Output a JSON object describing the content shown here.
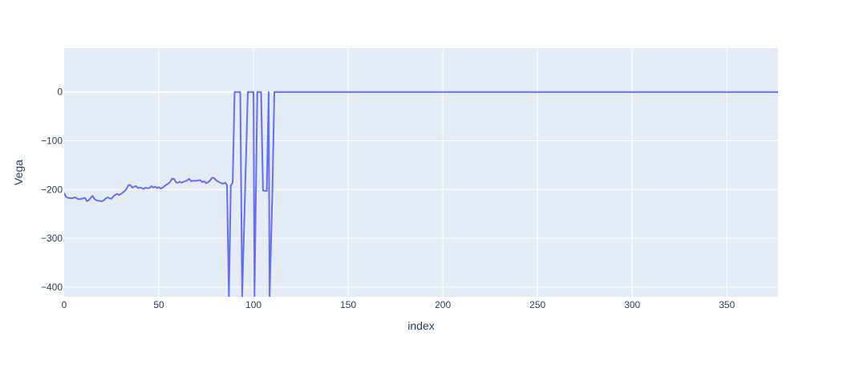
{
  "chart_data": {
    "type": "line",
    "title": "",
    "xlabel": "index",
    "ylabel": "Vega",
    "xlim": [
      0,
      377
    ],
    "ylim": [
      -420,
      90
    ],
    "grid": true,
    "xticks": [
      0,
      50,
      100,
      150,
      200,
      250,
      300,
      350
    ],
    "yticks": [
      0,
      -100,
      -200,
      -300,
      -400
    ],
    "x_tick_labels": [
      "0",
      "50",
      "100",
      "150",
      "200",
      "250",
      "300",
      "350"
    ],
    "y_tick_labels": [
      "0",
      "−100",
      "−200",
      "−300",
      "−400"
    ],
    "series": [
      {
        "color": "#636efa",
        "points": [
          [
            0,
            -207
          ],
          [
            1,
            -215
          ],
          [
            2,
            -217
          ],
          [
            4,
            -218
          ],
          [
            5,
            -217
          ],
          [
            6,
            -216
          ],
          [
            7,
            -219
          ],
          [
            8,
            -220
          ],
          [
            10,
            -218
          ],
          [
            11,
            -217
          ],
          [
            12,
            -224
          ],
          [
            13,
            -222
          ],
          [
            14,
            -217
          ],
          [
            15,
            -213
          ],
          [
            16,
            -219
          ],
          [
            17,
            -222
          ],
          [
            18,
            -223
          ],
          [
            20,
            -224
          ],
          [
            21,
            -222
          ],
          [
            22,
            -218
          ],
          [
            23,
            -216
          ],
          [
            24,
            -218
          ],
          [
            25,
            -219
          ],
          [
            26,
            -214
          ],
          [
            27,
            -211
          ],
          [
            28,
            -209
          ],
          [
            29,
            -211
          ],
          [
            30,
            -209
          ],
          [
            31,
            -206
          ],
          [
            32,
            -203
          ],
          [
            33,
            -198
          ],
          [
            34,
            -191
          ],
          [
            35,
            -191
          ],
          [
            36,
            -196
          ],
          [
            37,
            -194
          ],
          [
            38,
            -193
          ],
          [
            39,
            -197
          ],
          [
            40,
            -196
          ],
          [
            41,
            -197
          ],
          [
            42,
            -199
          ],
          [
            43,
            -196
          ],
          [
            44,
            -197
          ],
          [
            45,
            -197
          ],
          [
            46,
            -193
          ],
          [
            47,
            -196
          ],
          [
            48,
            -194
          ],
          [
            49,
            -197
          ],
          [
            50,
            -195
          ],
          [
            51,
            -198
          ],
          [
            52,
            -196
          ],
          [
            53,
            -193
          ],
          [
            54,
            -190
          ],
          [
            55,
            -188
          ],
          [
            56,
            -184
          ],
          [
            57,
            -178
          ],
          [
            58,
            -178
          ],
          [
            59,
            -185
          ],
          [
            60,
            -186
          ],
          [
            61,
            -184
          ],
          [
            62,
            -186
          ],
          [
            63,
            -184
          ],
          [
            64,
            -183
          ],
          [
            65,
            -181
          ],
          [
            66,
            -178
          ],
          [
            67,
            -183
          ],
          [
            68,
            -182
          ],
          [
            70,
            -182
          ],
          [
            71,
            -181
          ],
          [
            72,
            -181
          ],
          [
            73,
            -185
          ],
          [
            74,
            -183
          ],
          [
            75,
            -187
          ],
          [
            76,
            -185
          ],
          [
            77,
            -182
          ],
          [
            78,
            -176
          ],
          [
            79,
            -176
          ],
          [
            80,
            -180
          ],
          [
            81,
            -183
          ],
          [
            82,
            -185
          ],
          [
            83,
            -187
          ],
          [
            84,
            -188
          ],
          [
            85,
            -186
          ],
          [
            86,
            -191
          ],
          [
            87,
            -420
          ],
          [
            88,
            -192
          ],
          [
            89,
            -186
          ],
          [
            90,
            0
          ],
          [
            93,
            0
          ],
          [
            94,
            -420
          ],
          [
            97,
            0
          ],
          [
            100,
            0
          ],
          [
            100.5,
            -420
          ],
          [
            102,
            0
          ],
          [
            104,
            0
          ],
          [
            105,
            -202
          ],
          [
            107,
            -203
          ],
          [
            108,
            0
          ],
          [
            108.5,
            -420
          ],
          [
            110,
            -200
          ],
          [
            111,
            0
          ],
          [
            377,
            0
          ]
        ]
      }
    ]
  }
}
